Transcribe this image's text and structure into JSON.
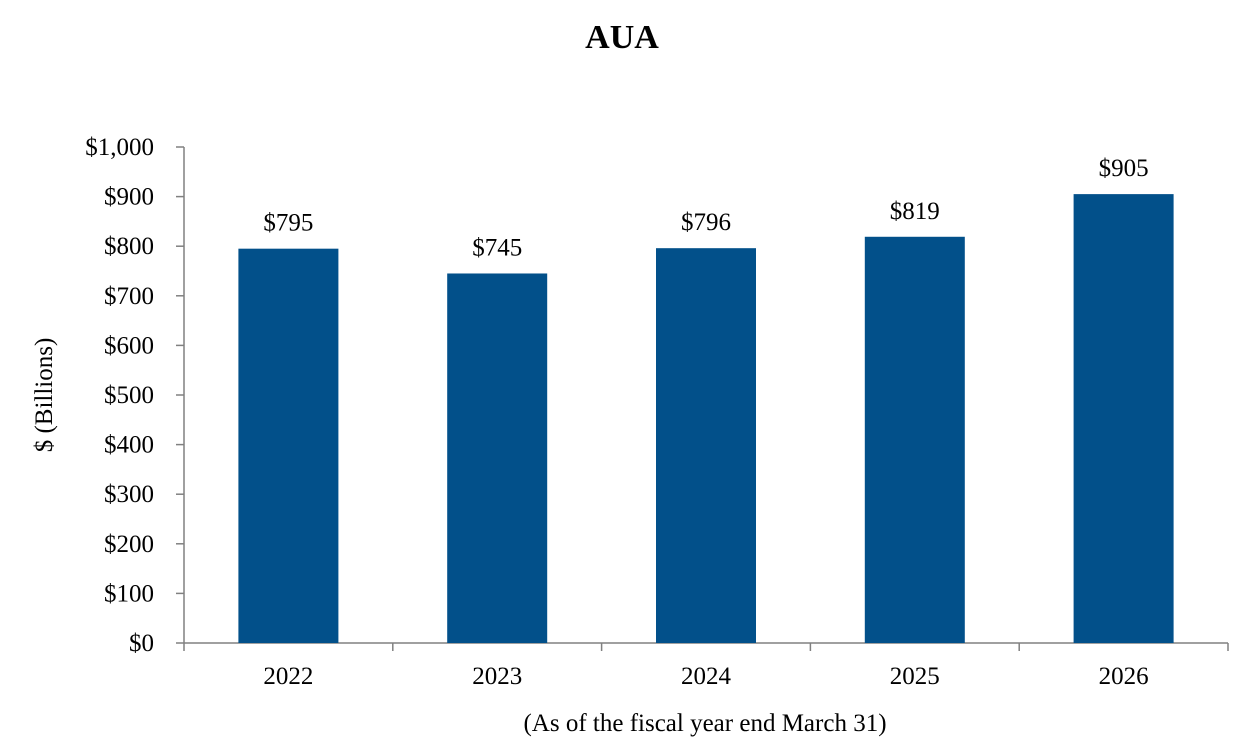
{
  "chart_data": {
    "type": "bar",
    "title": "AUA",
    "xlabel": "(As of the fiscal year end March 31)",
    "ylabel": "$ (Billions)",
    "categories": [
      "2022",
      "2023",
      "2024",
      "2025",
      "2026"
    ],
    "values": [
      795,
      745,
      796,
      819,
      905
    ],
    "value_labels": [
      "$795",
      "$745",
      "$796",
      "$819",
      "$905"
    ],
    "ylim": [
      0,
      1000
    ],
    "y_ticks": [
      0,
      100,
      200,
      300,
      400,
      500,
      600,
      700,
      800,
      900,
      1000
    ],
    "y_tick_labels": [
      "$0",
      "$100",
      "$200",
      "$300",
      "$400",
      "$500",
      "$600",
      "$700",
      "$800",
      "$900",
      "$1,000"
    ],
    "grid": false,
    "legend": "none",
    "bar_color": "#02508A",
    "axis_color": "#808080"
  }
}
